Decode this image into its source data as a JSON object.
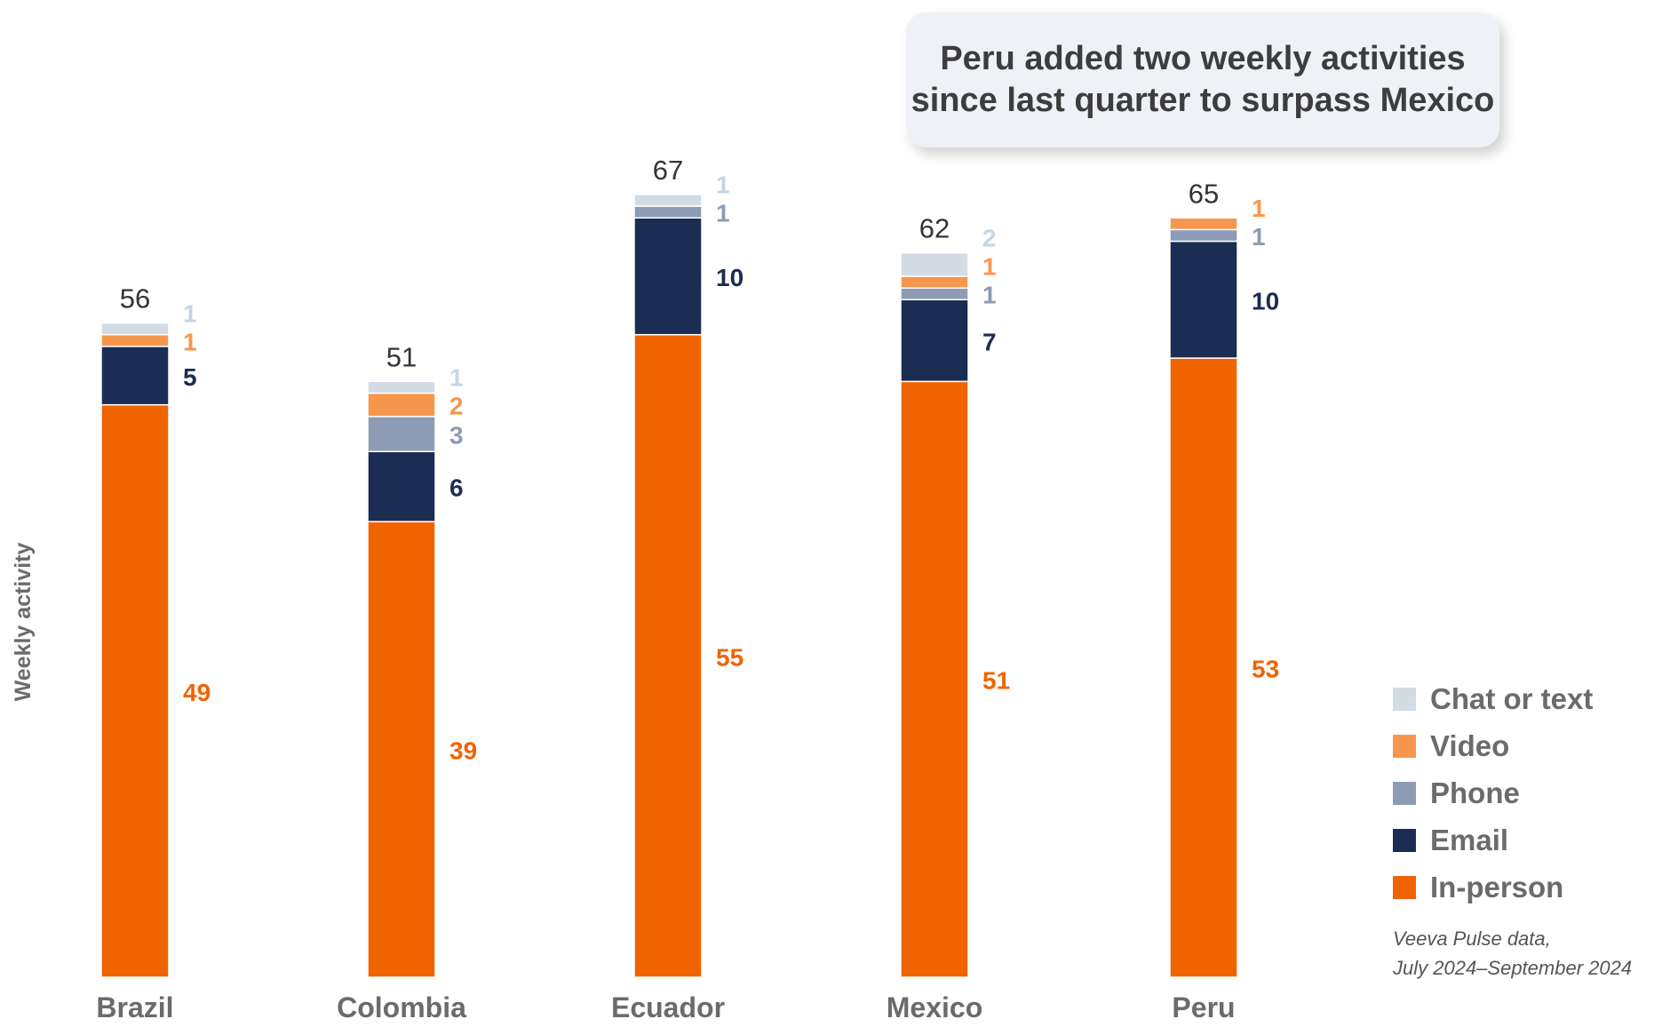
{
  "chart_data": {
    "type": "bar",
    "stacked": true,
    "title": "Peru added two weekly activities since last quarter to surpass Mexico",
    "title_lines": [
      "Peru added two weekly activities",
      "since last quarter to surpass Mexico"
    ],
    "ylabel": "Weekly activity",
    "xlabel": "",
    "categories": [
      "Brazil",
      "Colombia",
      "Ecuador",
      "Mexico",
      "Peru"
    ],
    "totals": [
      56,
      51,
      67,
      62,
      65
    ],
    "ylim": [
      0,
      70
    ],
    "series": [
      {
        "name": "In-person",
        "color": "#f06400",
        "label_color": "#f06400",
        "values": [
          49,
          39,
          55,
          51,
          53
        ]
      },
      {
        "name": "Email",
        "color": "#1b2d52",
        "label_color": "#1b2d52",
        "values": [
          5,
          6,
          10,
          7,
          10
        ]
      },
      {
        "name": "Phone",
        "color": "#8e9bb4",
        "label_color": "#8e9bb4",
        "values": [
          null,
          3,
          1,
          1,
          1
        ]
      },
      {
        "name": "Video",
        "color": "#f7964d",
        "label_color": "#f7964d",
        "values": [
          1,
          2,
          null,
          1,
          1
        ]
      },
      {
        "name": "Chat or text",
        "color": "#d3dbe5",
        "label_color": "#c7d4e3",
        "values": [
          1,
          1,
          1,
          2,
          null
        ]
      }
    ],
    "legend_order": [
      "Chat or text",
      "Video",
      "Phone",
      "Email",
      "In-person"
    ],
    "legend_position": "bottom-right",
    "source": [
      "Veeva Pulse data,",
      "July 2024–September 2024"
    ]
  }
}
